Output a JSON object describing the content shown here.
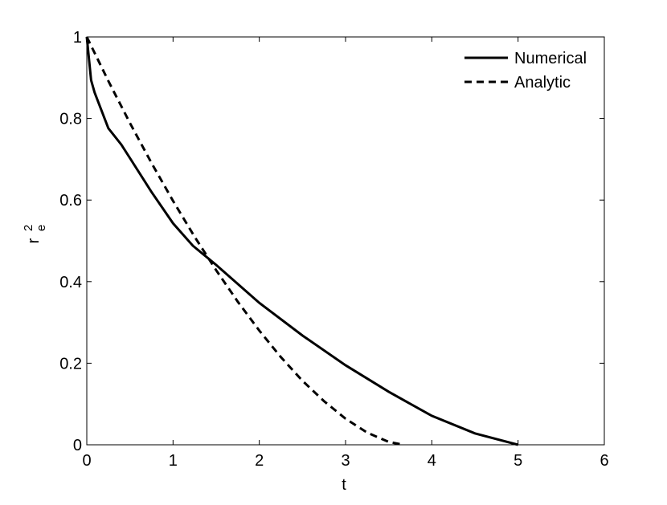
{
  "chart_data": {
    "type": "line",
    "xlabel": "t",
    "ylabel": {
      "base": "r",
      "superscript": "2",
      "subscript": "e"
    },
    "xlim": [
      0,
      6
    ],
    "xticks": [
      0,
      1,
      2,
      3,
      4,
      5,
      6
    ],
    "ylim": [
      0,
      1
    ],
    "yticks": [
      0,
      0.2,
      0.4,
      0.6,
      0.8,
      1
    ],
    "legend": "top-right",
    "series": [
      {
        "name": "Numerical",
        "color": "#000000",
        "dash": "solid",
        "x": [
          0,
          0.05,
          0.09,
          0.25,
          0.4,
          0.5,
          0.75,
          1,
          1.23,
          1.5,
          2,
          2.5,
          3,
          3.5,
          4,
          4.5,
          5
        ],
        "values": [
          1,
          0.894,
          0.864,
          0.776,
          0.736,
          0.703,
          0.62,
          0.543,
          0.488,
          0.441,
          0.348,
          0.268,
          0.195,
          0.13,
          0.071,
          0.028,
          0
        ]
      },
      {
        "name": "Analytic",
        "color": "#000000",
        "dash": "dashed",
        "x": [
          0,
          0.25,
          0.5,
          0.75,
          1,
          1.25,
          1.5,
          1.75,
          2,
          2.25,
          2.5,
          2.75,
          3,
          3.25,
          3.5,
          3.67
        ],
        "values": [
          1,
          0.892,
          0.789,
          0.691,
          0.598,
          0.51,
          0.428,
          0.351,
          0.28,
          0.215,
          0.157,
          0.107,
          0.064,
          0.03,
          0.007,
          0
        ]
      }
    ]
  }
}
